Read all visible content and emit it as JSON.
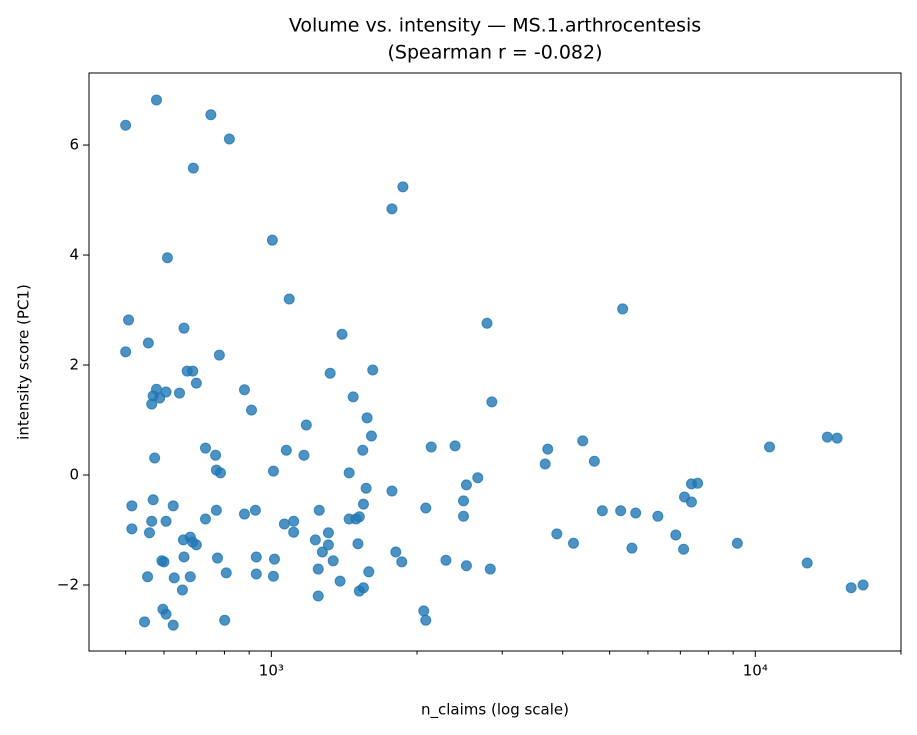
{
  "chart_data": {
    "type": "scatter",
    "title": "Volume vs. intensity — MS.1.arthrocentesis",
    "subtitle": "(Spearman r = -0.082)",
    "xlabel": "n_claims (log scale)",
    "ylabel": "intensity score (PC1)",
    "xscale": "log",
    "color": "#1f77b4",
    "xlim": [
      420,
      20000
    ],
    "ylim": [
      -3.2,
      7.31
    ],
    "xticks": [
      {
        "value": 1000,
        "label": "10³"
      },
      {
        "value": 10000,
        "label": "10⁴"
      }
    ],
    "xminorticks": [
      500,
      600,
      700,
      800,
      900,
      2000,
      3000,
      4000,
      5000,
      6000,
      7000,
      8000,
      9000,
      20000
    ],
    "yticks": [
      {
        "value": -2,
        "label": "−2"
      },
      0,
      2,
      4,
      6
    ],
    "x": [
      500,
      579,
      750,
      819,
      690,
      1870,
      1775,
      1005,
      610,
      1089,
      5320,
      507,
      1400,
      2790,
      660,
      500,
      557,
      781,
      1323,
      1620,
      670,
      688,
      700,
      579,
      606,
      646,
      570,
      588,
      566,
      880,
      910,
      1476,
      2855,
      1577,
      1181,
      1610,
      731,
      767,
      1074,
      1168,
      574,
      1545,
      2140,
      2397,
      3725,
      4400,
      4650,
      3680,
      10700,
      14090,
      14760,
      770,
      785,
      1010,
      1448,
      2670,
      2530,
      1775,
      1570,
      7380,
      7600,
      7140,
      7380,
      515,
      570,
      627,
      770,
      927,
      880,
      1256,
      1550,
      2085,
      2495,
      2495,
      1520,
      1496,
      1448,
      566,
      606,
      731,
      1064,
      1112,
      4830,
      5270,
      5660,
      6290,
      515,
      560,
      658,
      680,
      688,
      700,
      1112,
      1312,
      1233,
      1312,
      1275,
      1510,
      3890,
      4210,
      5560,
      6850,
      7110,
      9180,
      660,
      594,
      600,
      774,
      931,
      1015,
      1808,
      1860,
      1342,
      2295,
      1250,
      1590,
      2530,
      2834,
      12800,
      555,
      630,
      680,
      807,
      931,
      1010,
      1387,
      655,
      1550,
      1520,
      1250,
      15780,
      16700,
      2065,
      2085,
      597,
      606,
      801,
      547,
      627
    ],
    "values": [
      6.36,
      6.82,
      6.55,
      6.11,
      5.58,
      5.24,
      4.84,
      4.27,
      3.95,
      3.2,
      3.02,
      2.82,
      2.56,
      2.76,
      2.67,
      2.24,
      2.4,
      2.18,
      1.85,
      1.91,
      1.89,
      1.89,
      1.67,
      1.56,
      1.51,
      1.49,
      1.44,
      1.4,
      1.29,
      1.55,
      1.18,
      1.42,
      1.33,
      1.04,
      0.91,
      0.71,
      0.49,
      0.36,
      0.45,
      0.36,
      0.31,
      0.45,
      0.51,
      0.53,
      0.47,
      0.62,
      0.25,
      0.2,
      0.51,
      0.69,
      0.67,
      0.09,
      0.04,
      0.07,
      0.04,
      -0.05,
      -0.18,
      -0.29,
      -0.24,
      -0.16,
      -0.15,
      -0.4,
      -0.49,
      -0.56,
      -0.45,
      -0.56,
      -0.64,
      -0.64,
      -0.71,
      -0.64,
      -0.53,
      -0.6,
      -0.47,
      -0.75,
      -0.76,
      -0.8,
      -0.8,
      -0.84,
      -0.84,
      -0.8,
      -0.89,
      -0.84,
      -0.65,
      -0.65,
      -0.69,
      -0.75,
      -0.98,
      -1.05,
      -1.18,
      -1.13,
      -1.22,
      -1.27,
      -1.04,
      -1.05,
      -1.18,
      -1.27,
      -1.4,
      -1.25,
      -1.07,
      -1.24,
      -1.33,
      -1.09,
      -1.35,
      -1.24,
      -1.49,
      -1.56,
      -1.58,
      -1.51,
      -1.49,
      -1.53,
      -1.4,
      -1.58,
      -1.56,
      -1.55,
      -1.71,
      -1.76,
      -1.65,
      -1.71,
      -1.6,
      -1.85,
      -1.87,
      -1.85,
      -1.78,
      -1.8,
      -1.84,
      -1.93,
      -2.09,
      -2.05,
      -2.11,
      -2.2,
      -2.05,
      -2.0,
      -2.47,
      -2.64,
      -2.44,
      -2.53,
      -2.64,
      -2.67,
      -2.73
    ]
  }
}
